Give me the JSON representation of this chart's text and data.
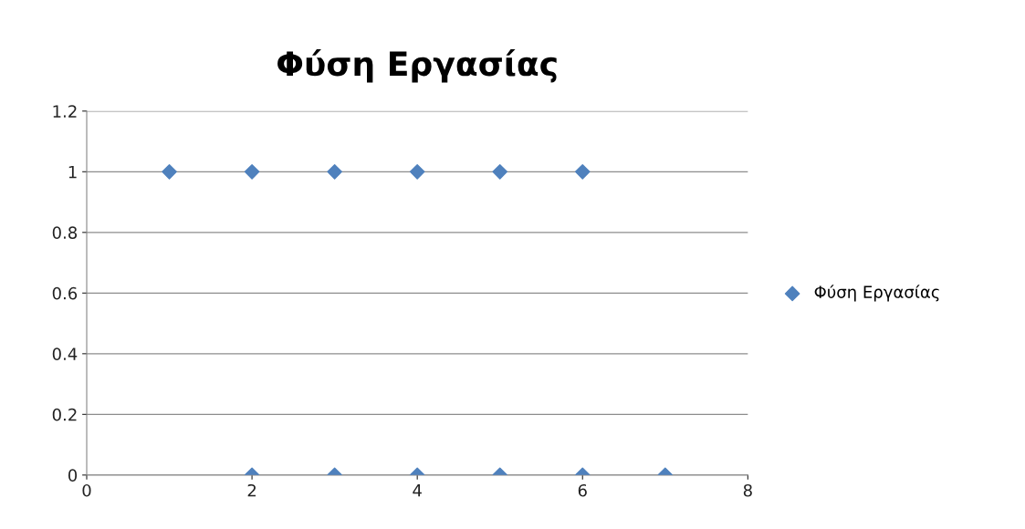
{
  "chart_data": {
    "type": "scatter",
    "title": "Φύση Εργασίας",
    "series": [
      {
        "name": "Φύση Εργασίας",
        "color": "#4f81bd",
        "x": [
          1,
          2,
          3,
          4,
          5,
          6,
          2,
          3,
          4,
          5,
          6,
          7
        ],
        "values": [
          1,
          1,
          1,
          1,
          1,
          1,
          0,
          0,
          0,
          0,
          0,
          0
        ]
      }
    ],
    "xlim": [
      0,
      8
    ],
    "xticks": [
      0,
      2,
      4,
      6,
      8
    ],
    "ylim": [
      0,
      1.2
    ],
    "yticks": [
      0,
      0.2,
      0.4,
      0.6,
      0.8,
      1,
      1.2
    ],
    "grid": "y",
    "legend": "right",
    "marker": "diamond"
  }
}
